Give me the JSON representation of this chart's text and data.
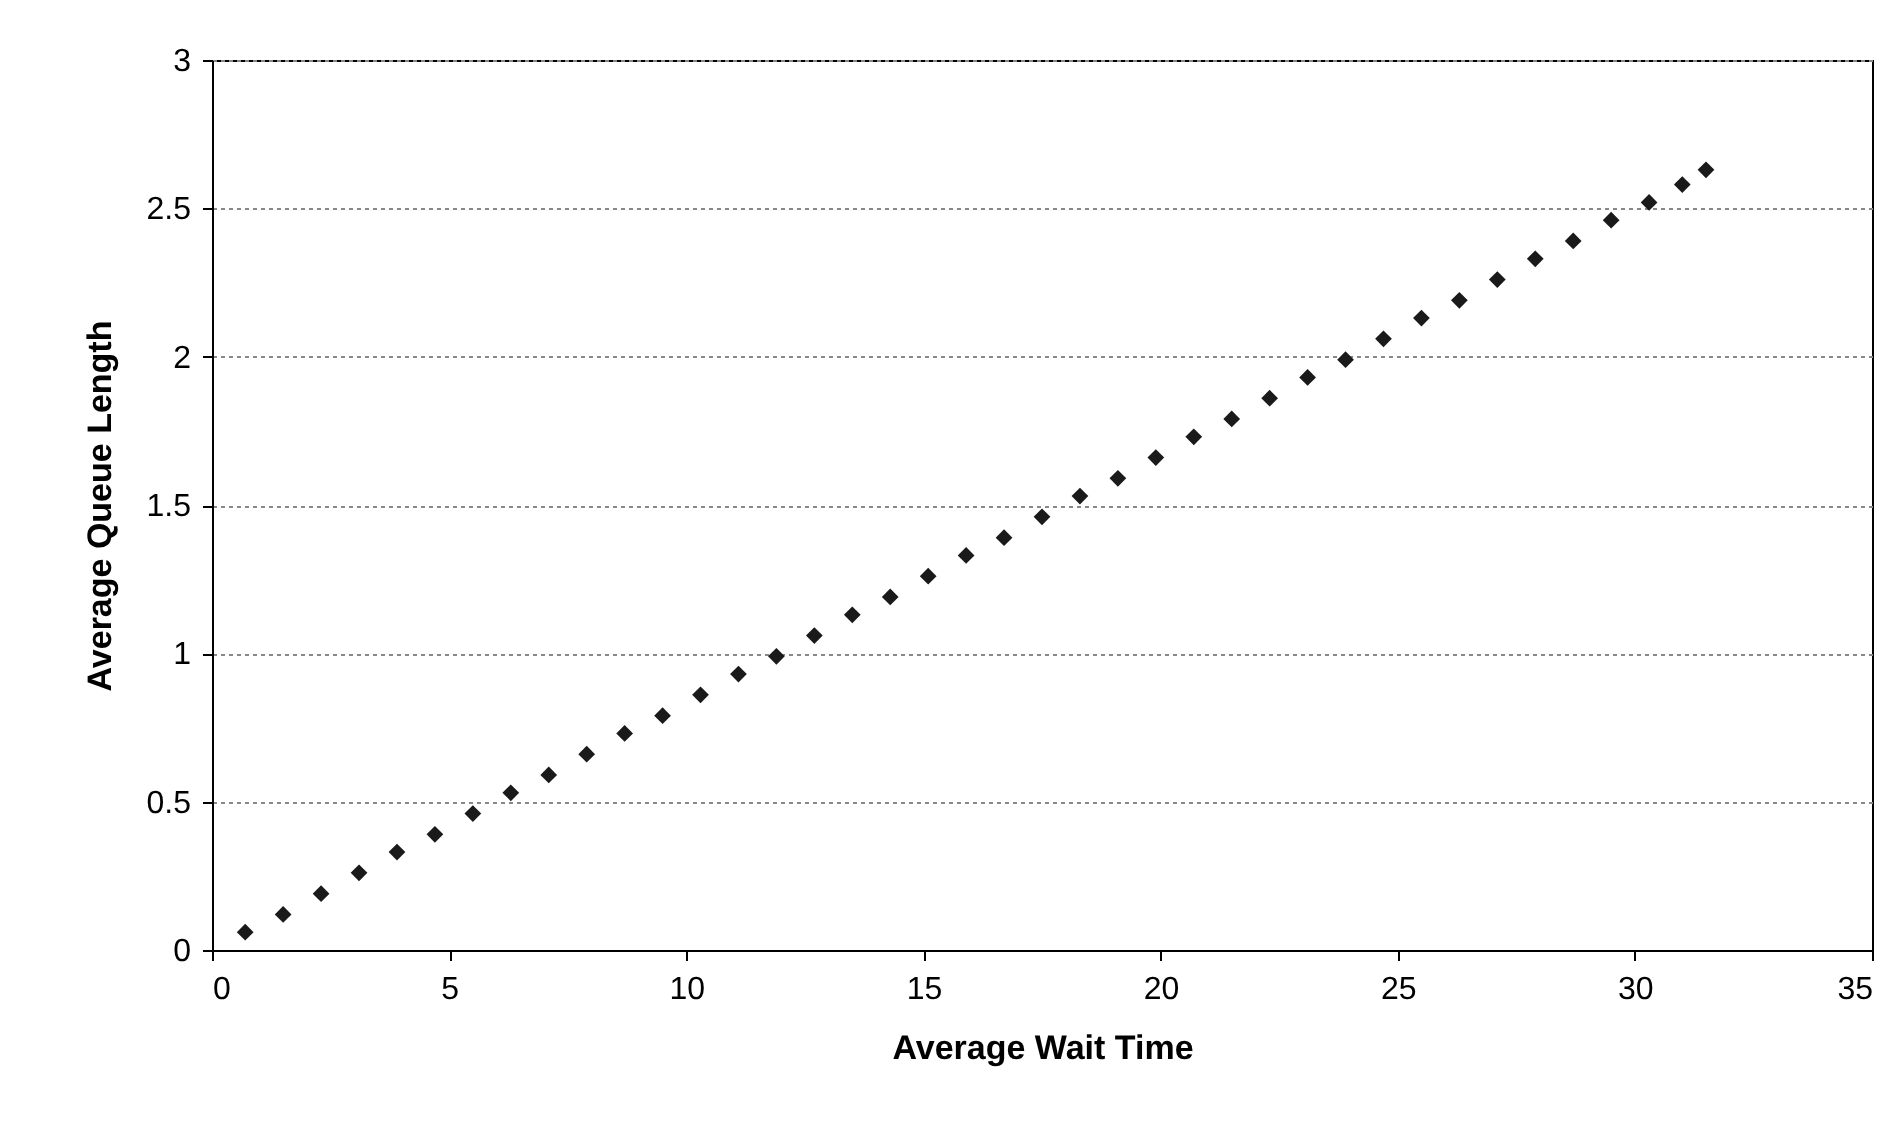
{
  "chart_data": {
    "type": "scatter",
    "xlabel": "Average Wait Time",
    "ylabel": "Average Queue Length",
    "x": [
      0.7,
      1.5,
      2.3,
      3.1,
      3.9,
      4.7,
      5.5,
      6.3,
      7.1,
      7.9,
      8.7,
      9.5,
      10.3,
      11.1,
      11.9,
      12.7,
      13.5,
      14.3,
      15.1,
      15.9,
      16.7,
      17.5,
      18.3,
      19.1,
      19.9,
      20.7,
      21.5,
      22.3,
      23.1,
      23.9,
      24.7,
      25.5,
      26.3,
      27.1,
      27.9,
      28.7,
      29.5,
      30.3,
      31.0,
      31.5
    ],
    "series": [
      {
        "color": "#1a1a1a",
        "values": [
          0.06,
          0.12,
          0.19,
          0.26,
          0.33,
          0.39,
          0.46,
          0.53,
          0.59,
          0.66,
          0.73,
          0.79,
          0.86,
          0.93,
          0.99,
          1.06,
          1.13,
          1.19,
          1.26,
          1.33,
          1.39,
          1.46,
          1.53,
          1.59,
          1.66,
          1.73,
          1.79,
          1.86,
          1.93,
          1.99,
          2.06,
          2.13,
          2.19,
          2.26,
          2.33,
          2.39,
          2.46,
          2.52,
          2.58,
          2.63
        ]
      }
    ],
    "xlim": [
      0,
      35
    ],
    "xticks": [
      0,
      5,
      10,
      15,
      20,
      25,
      30,
      35
    ],
    "ylim": [
      0,
      3
    ],
    "yticks": [
      0,
      0.5,
      1,
      1.5,
      2,
      2.5,
      3
    ],
    "grid": "y",
    "marker": "diamond"
  }
}
